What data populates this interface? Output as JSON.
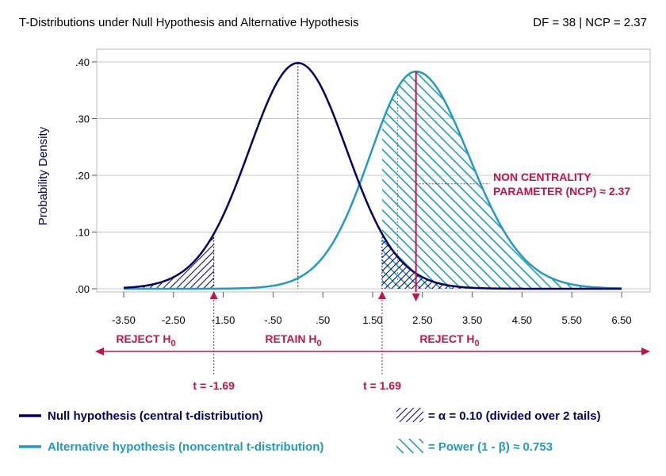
{
  "header": {
    "title": "T-Distributions under Null Hypothesis and Alternative Hypothesis",
    "right": "DF = 38 | NCP = 2.37"
  },
  "chart_data": {
    "type": "line",
    "title": "T-Distributions under Null Hypothesis and Alternative Hypothesis",
    "xlabel": "",
    "ylabel": "Probability Density",
    "xlim": [
      -3.5,
      6.5
    ],
    "ylim": [
      0,
      0.4
    ],
    "x_ticks": [
      "-3.50",
      "-2.50",
      "-1.50",
      "-.50",
      ".50",
      "1.50",
      "2.50",
      "3.50",
      "4.50",
      "5.50",
      "6.50"
    ],
    "x_tick_values": [
      -3.5,
      -2.5,
      -1.5,
      -0.5,
      0.5,
      1.5,
      2.5,
      3.5,
      4.5,
      5.5,
      6.5
    ],
    "y_ticks": [
      ".00",
      ".10",
      ".20",
      ".30",
      ".40"
    ],
    "y_tick_values": [
      0,
      0.1,
      0.2,
      0.3,
      0.4
    ],
    "grid": true,
    "df": 38,
    "ncp": 2.37,
    "t_critical": 1.69,
    "series": [
      {
        "name": "Null hypothesis (central t-distribution)",
        "color": "#000066",
        "peak_x": 0,
        "peak_y": 0.398
      },
      {
        "name": "Alternative hypothesis (noncentral t-distribution)",
        "color": "#1f9bc5",
        "peak_x": 2.37,
        "peak_y": 0.383
      }
    ],
    "regions": {
      "reject_left": "REJECT H",
      "retain": "RETAIN H",
      "reject_right": "REJECT H",
      "subscript": "0"
    },
    "annotations": {
      "ncp_line1": "NON CENTRALITY",
      "ncp_line2": "PARAMETER (NCP) ≈ 2.37",
      "t_left": "t = -1.69",
      "t_right": "t = 1.69"
    },
    "legend": {
      "null": "Null hypothesis (central t-distribution)",
      "alt": "Alternative hypothesis (noncentral t-distribution)",
      "alpha": "= α = 0.10 (divided over 2 tails)",
      "power": "= Power (1 - β) ≈ 0.753"
    },
    "colors": {
      "null": "#000066",
      "alt": "#1f9bc5",
      "accent": "#c8104a",
      "grid": "#c8c8c8"
    }
  }
}
